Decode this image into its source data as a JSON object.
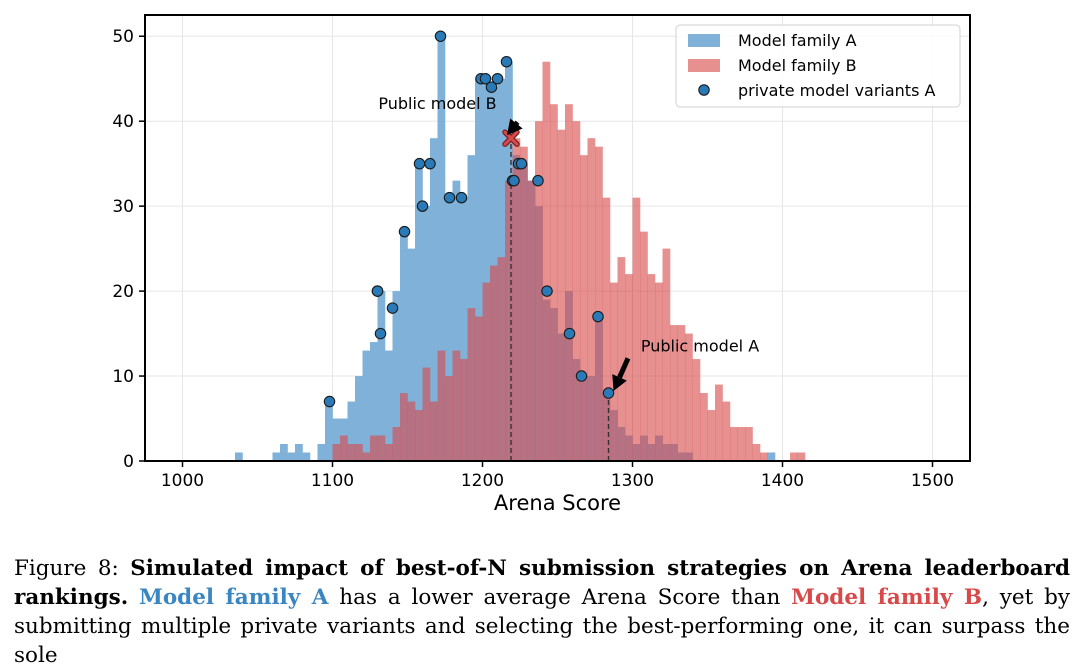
{
  "chart_data": {
    "type": "histogram",
    "xlabel": "Arena Score",
    "ylabel": "",
    "xlim": [
      975,
      1525
    ],
    "ylim": [
      0,
      52.5
    ],
    "x_ticks": [
      1000,
      1100,
      1200,
      1300,
      1400,
      1500
    ],
    "y_ticks": [
      0,
      10,
      20,
      30,
      40,
      50
    ],
    "bin_width": 5,
    "grid": true,
    "legend_position": "top-right",
    "series": [
      {
        "name": "Model family A",
        "color": "#7fb1d9",
        "bins": [
          [
            1035,
            1
          ],
          [
            1060,
            1
          ],
          [
            1065,
            2
          ],
          [
            1070,
            1
          ],
          [
            1075,
            2
          ],
          [
            1080,
            1
          ],
          [
            1090,
            2
          ],
          [
            1095,
            7
          ],
          [
            1100,
            5
          ],
          [
            1105,
            5
          ],
          [
            1110,
            7
          ],
          [
            1115,
            10
          ],
          [
            1120,
            13
          ],
          [
            1125,
            14
          ],
          [
            1130,
            20
          ],
          [
            1135,
            13
          ],
          [
            1140,
            20
          ],
          [
            1145,
            27
          ],
          [
            1150,
            25
          ],
          [
            1155,
            35
          ],
          [
            1160,
            30
          ],
          [
            1165,
            38
          ],
          [
            1170,
            50
          ],
          [
            1175,
            31
          ],
          [
            1180,
            33
          ],
          [
            1185,
            31
          ],
          [
            1190,
            36
          ],
          [
            1195,
            45
          ],
          [
            1200,
            45
          ],
          [
            1205,
            44
          ],
          [
            1210,
            45
          ],
          [
            1215,
            47
          ],
          [
            1220,
            36
          ],
          [
            1225,
            35
          ],
          [
            1230,
            33
          ],
          [
            1235,
            30
          ],
          [
            1240,
            19
          ],
          [
            1245,
            18
          ],
          [
            1250,
            15
          ],
          [
            1255,
            20
          ],
          [
            1260,
            12
          ],
          [
            1265,
            10
          ],
          [
            1270,
            10
          ],
          [
            1275,
            17
          ],
          [
            1280,
            8
          ],
          [
            1285,
            6
          ],
          [
            1290,
            4
          ],
          [
            1295,
            3
          ],
          [
            1300,
            2
          ],
          [
            1305,
            3
          ],
          [
            1310,
            2
          ],
          [
            1315,
            3
          ],
          [
            1320,
            2
          ],
          [
            1325,
            2
          ],
          [
            1330,
            1
          ],
          [
            1335,
            1
          ],
          [
            1390,
            1
          ]
        ]
      },
      {
        "name": "Model family B",
        "color": "#e88a8a",
        "bins": [
          [
            1100,
            2
          ],
          [
            1105,
            3
          ],
          [
            1110,
            2
          ],
          [
            1115,
            2
          ],
          [
            1120,
            1
          ],
          [
            1125,
            3
          ],
          [
            1130,
            3
          ],
          [
            1135,
            2
          ],
          [
            1140,
            4
          ],
          [
            1145,
            8
          ],
          [
            1150,
            7
          ],
          [
            1155,
            6
          ],
          [
            1160,
            11
          ],
          [
            1165,
            7
          ],
          [
            1170,
            13
          ],
          [
            1175,
            10
          ],
          [
            1180,
            13
          ],
          [
            1185,
            12
          ],
          [
            1190,
            18
          ],
          [
            1195,
            17
          ],
          [
            1200,
            21
          ],
          [
            1205,
            23
          ],
          [
            1210,
            24
          ],
          [
            1215,
            33
          ],
          [
            1220,
            38
          ],
          [
            1225,
            37
          ],
          [
            1230,
            33
          ],
          [
            1235,
            40
          ],
          [
            1240,
            47
          ],
          [
            1245,
            42
          ],
          [
            1250,
            39
          ],
          [
            1255,
            42
          ],
          [
            1260,
            40
          ],
          [
            1265,
            36
          ],
          [
            1270,
            38
          ],
          [
            1275,
            37
          ],
          [
            1280,
            31
          ],
          [
            1285,
            21
          ],
          [
            1290,
            24
          ],
          [
            1295,
            22
          ],
          [
            1300,
            31
          ],
          [
            1305,
            27
          ],
          [
            1310,
            22
          ],
          [
            1315,
            21
          ],
          [
            1320,
            25
          ],
          [
            1325,
            16
          ],
          [
            1330,
            16
          ],
          [
            1335,
            15
          ],
          [
            1340,
            12
          ],
          [
            1345,
            8
          ],
          [
            1350,
            6
          ],
          [
            1355,
            9
          ],
          [
            1360,
            7
          ],
          [
            1365,
            4
          ],
          [
            1370,
            4
          ],
          [
            1375,
            4
          ],
          [
            1380,
            2
          ],
          [
            1385,
            1
          ],
          [
            1405,
            1
          ],
          [
            1410,
            1
          ]
        ]
      },
      {
        "name": "private model variants A",
        "type": "scatter",
        "color": "#2a7ab8",
        "points": [
          [
            1098,
            7
          ],
          [
            1130,
            20
          ],
          [
            1130,
            20
          ],
          [
            1132,
            15
          ],
          [
            1140,
            18
          ],
          [
            1148,
            27
          ],
          [
            1158,
            35
          ],
          [
            1160,
            30
          ],
          [
            1165,
            35
          ],
          [
            1172,
            50
          ],
          [
            1178,
            31
          ],
          [
            1186,
            31
          ],
          [
            1199,
            45
          ],
          [
            1202,
            45
          ],
          [
            1206,
            44
          ],
          [
            1210,
            45
          ],
          [
            1216,
            47
          ],
          [
            1220,
            33
          ],
          [
            1221,
            33
          ],
          [
            1224,
            35
          ],
          [
            1226,
            35
          ],
          [
            1237,
            33
          ],
          [
            1243,
            20
          ],
          [
            1258,
            15
          ],
          [
            1266,
            10
          ],
          [
            1277,
            17
          ],
          [
            1284,
            8
          ]
        ]
      }
    ],
    "markers": [
      {
        "name": "Public model B",
        "x": 1219,
        "y": 38,
        "color": "#d84a4a",
        "symbol": "x"
      }
    ],
    "vlines": [
      {
        "x": 1219,
        "from": 0,
        "to": 38
      },
      {
        "x": 1284,
        "from": 0,
        "to": 8
      }
    ],
    "annotations": [
      {
        "text": "Public model B",
        "text_at": [
          1170,
          42
        ],
        "arrow_to": [
          1219,
          38
        ]
      },
      {
        "text": "Public model A",
        "text_at": [
          1345,
          13.5
        ],
        "arrow_to": [
          1286,
          8
        ]
      }
    ]
  },
  "caption": {
    "figure_label": "Figure 8:",
    "bold_title": "Simulated impact of best-of-N submission strategies on Arena leaderboard rankings.",
    "family_a": "Model family A",
    "text_1": "has a lower average Arena Score than",
    "family_b": "Model family B",
    "text_2": ", yet by submitting multiple private variants and selecting the best-performing one, it can surpass the sole"
  }
}
